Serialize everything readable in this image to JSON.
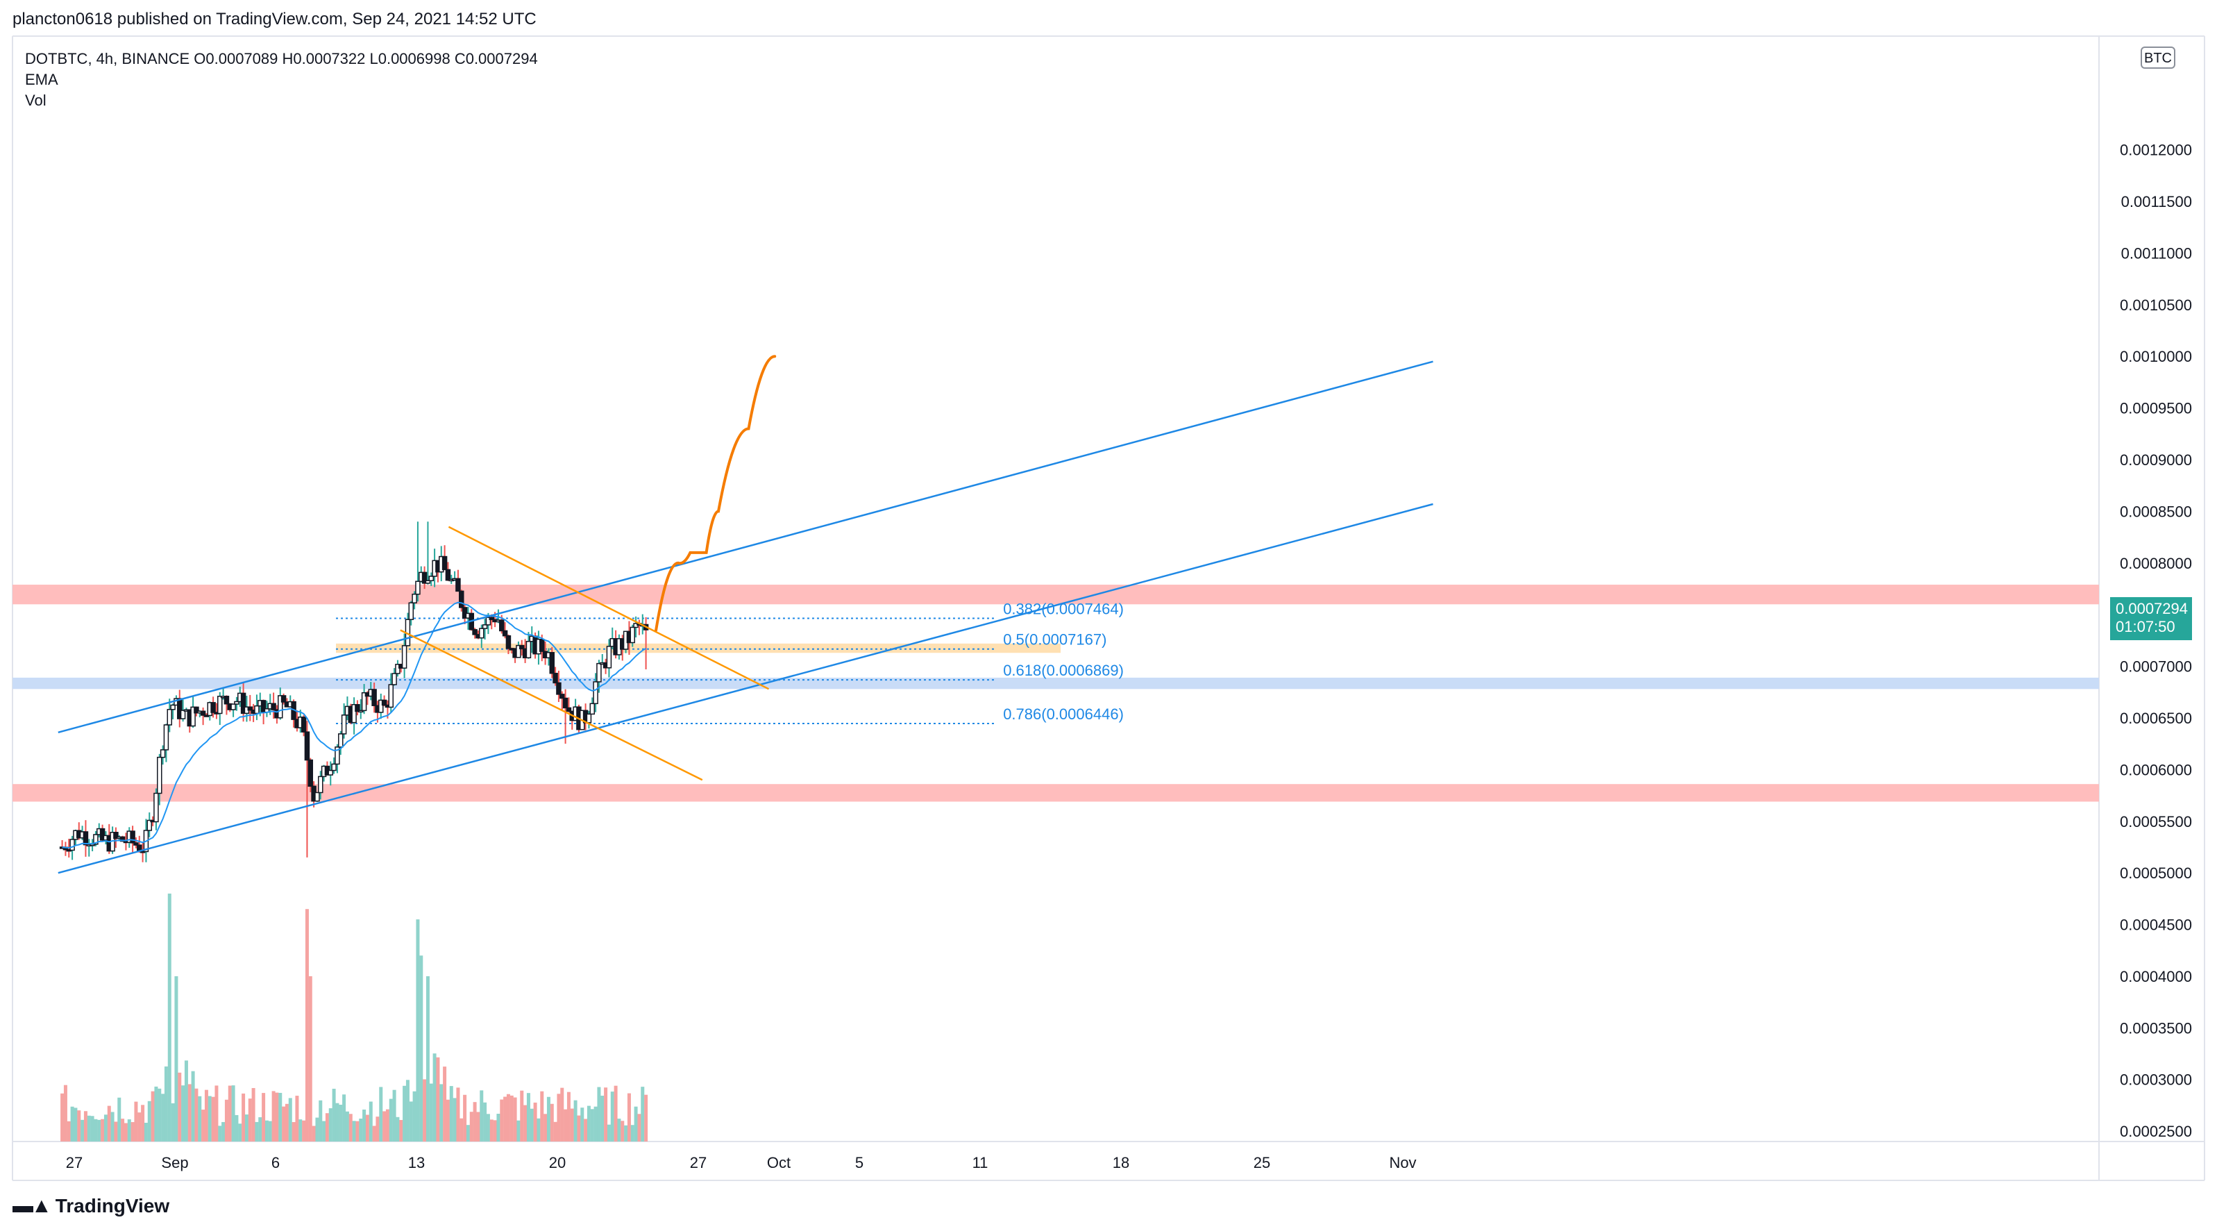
{
  "header": {
    "publisher_line": "plancton0618 published on TradingView.com, Sep 24, 2021 14:52 UTC"
  },
  "legend": {
    "ohlc_line": "DOTBTC, 4h, BINANCE  O0.0007089  H0.0007322  L0.0006998  C0.0007294",
    "ema_label": "EMA",
    "vol_label": "Vol"
  },
  "price_tag": {
    "price": "0.0007294",
    "countdown": "01:07:50"
  },
  "currency_badge": "BTC",
  "branding": "TradingView",
  "colors": {
    "up": "#26a69a",
    "down": "#ef5350",
    "candle_body": "#131722",
    "ema": "#2196f3",
    "channel": "#1e88e5",
    "wedge": "#ff9800",
    "projection": "#f57c00",
    "resistance_zone": "#ffbdbd",
    "support_zone": "#c9dcf7",
    "fib_zone": "#ffe0b2",
    "fib_text": "#1e88e5"
  },
  "chart_data": {
    "type": "candlestick",
    "symbol": "DOTBTC",
    "timeframe": "4h",
    "exchange": "BINANCE",
    "ylim": [
      0.00024,
      0.00131
    ],
    "y_ticks": [
      "0.0012000",
      "0.0011500",
      "0.0011000",
      "0.0010500",
      "0.0010000",
      "0.0009500",
      "0.0009000",
      "0.0008500",
      "0.0008000",
      "0.0007500",
      "0.0007000",
      "0.0006500",
      "0.0006000",
      "0.0005500",
      "0.0005000",
      "0.0004500",
      "0.0004000",
      "0.0003500",
      "0.0003000",
      "0.0002500"
    ],
    "x_ticks": [
      {
        "label": "27",
        "day": -5
      },
      {
        "label": "Sep",
        "day": 0
      },
      {
        "label": "6",
        "day": 5
      },
      {
        "label": "13",
        "day": 12
      },
      {
        "label": "20",
        "day": 19
      },
      {
        "label": "27",
        "day": 26
      },
      {
        "label": "Oct",
        "day": 30
      },
      {
        "label": "5",
        "day": 34
      },
      {
        "label": "11",
        "day": 40
      },
      {
        "label": "18",
        "day": 47
      },
      {
        "label": "25",
        "day": 54
      },
      {
        "label": "Nov",
        "day": 61
      }
    ],
    "candle_keyframes": [
      {
        "day": -5.6,
        "close": 0.000525
      },
      {
        "day": -4.8,
        "close": 0.00054
      },
      {
        "day": -3.5,
        "close": 0.00053
      },
      {
        "day": -2.5,
        "close": 0.000532
      },
      {
        "day": -1.5,
        "close": 0.000525
      },
      {
        "day": -1.1,
        "close": 0.00056
      },
      {
        "day": -0.6,
        "close": 0.00063
      },
      {
        "day": -0.2,
        "close": 0.000665
      },
      {
        "day": 0.6,
        "close": 0.00065
      },
      {
        "day": 2.0,
        "close": 0.000665
      },
      {
        "day": 3.0,
        "close": 0.000668
      },
      {
        "day": 4.0,
        "close": 0.000655
      },
      {
        "day": 5.5,
        "close": 0.000662
      },
      {
        "day": 6.3,
        "close": 0.00064
      },
      {
        "day": 6.9,
        "close": 0.000575
      },
      {
        "day": 7.8,
        "close": 0.00061
      },
      {
        "day": 8.5,
        "close": 0.00065
      },
      {
        "day": 9.5,
        "close": 0.00067
      },
      {
        "day": 10.4,
        "close": 0.00066
      },
      {
        "day": 11.2,
        "close": 0.0007
      },
      {
        "day": 11.8,
        "close": 0.00077
      },
      {
        "day": 12.3,
        "close": 0.00079
      },
      {
        "day": 13.0,
        "close": 0.0008
      },
      {
        "day": 13.5,
        "close": 0.00079
      },
      {
        "day": 14.3,
        "close": 0.00076
      },
      {
        "day": 15.0,
        "close": 0.000735
      },
      {
        "day": 16.0,
        "close": 0.00075
      },
      {
        "day": 16.6,
        "close": 0.00071
      },
      {
        "day": 17.5,
        "close": 0.00072
      },
      {
        "day": 18.5,
        "close": 0.000715
      },
      {
        "day": 19.5,
        "close": 0.00066
      },
      {
        "day": 20.3,
        "close": 0.000645
      },
      {
        "day": 21.0,
        "close": 0.00069
      },
      {
        "day": 21.6,
        "close": 0.000715
      },
      {
        "day": 22.5,
        "close": 0.000725
      },
      {
        "day": 23.0,
        "close": 0.00074
      },
      {
        "day": 23.5,
        "close": 0.000729
      }
    ],
    "volume_spikes": [
      {
        "day": -0.3,
        "value": 0.00048
      },
      {
        "day": 0.0,
        "value": 0.0004
      },
      {
        "day": 6.6,
        "value": 0.000465
      },
      {
        "day": 6.8,
        "value": 0.0004
      },
      {
        "day": 12.0,
        "value": 0.000455
      },
      {
        "day": 12.3,
        "value": 0.00042
      },
      {
        "day": 12.6,
        "value": 0.0004
      },
      {
        "day": 23.8,
        "value": 0.000395
      }
    ],
    "drawings": {
      "channel_upper": [
        [
          -5.8,
          0.000636
        ],
        [
          62.5,
          0.000995
        ]
      ],
      "channel_lower": [
        [
          -5.8,
          0.0005
        ],
        [
          62.5,
          0.000857
        ]
      ],
      "wedge_upper": [
        [
          13.6,
          0.000835
        ],
        [
          29.5,
          0.000678
        ]
      ],
      "wedge_lower": [
        [
          11.2,
          0.000735
        ],
        [
          26.2,
          0.00059
        ]
      ],
      "projection": [
        [
          23.9,
          0.000735
        ],
        [
          25.0,
          0.0008
        ],
        [
          25.6,
          0.00081
        ],
        [
          26.4,
          0.00081
        ],
        [
          27.0,
          0.00085
        ],
        [
          28.5,
          0.00093
        ],
        [
          29.8,
          0.001
        ]
      ],
      "resistance_zone": [
        0.00076,
        0.000779
      ],
      "support_zone": [
        0.000678,
        0.000689
      ],
      "low_zone": [
        0.000569,
        0.000586
      ],
      "fib_zone": {
        "from_day": 8.0,
        "to_day": 44.0,
        "range": [
          0.000713,
          0.000722
        ]
      },
      "fib_levels": [
        {
          "label": "0.382(0.0007464)",
          "price": 0.0007464
        },
        {
          "label": "0.5(0.0007167)",
          "price": 0.0007167
        },
        {
          "label": "0.618(0.0006869)",
          "price": 0.0006869
        },
        {
          "label": "0.786(0.0006446)",
          "price": 0.0006446
        }
      ],
      "fib_from_day": 8.0,
      "fib_to_day": 40.8
    }
  }
}
